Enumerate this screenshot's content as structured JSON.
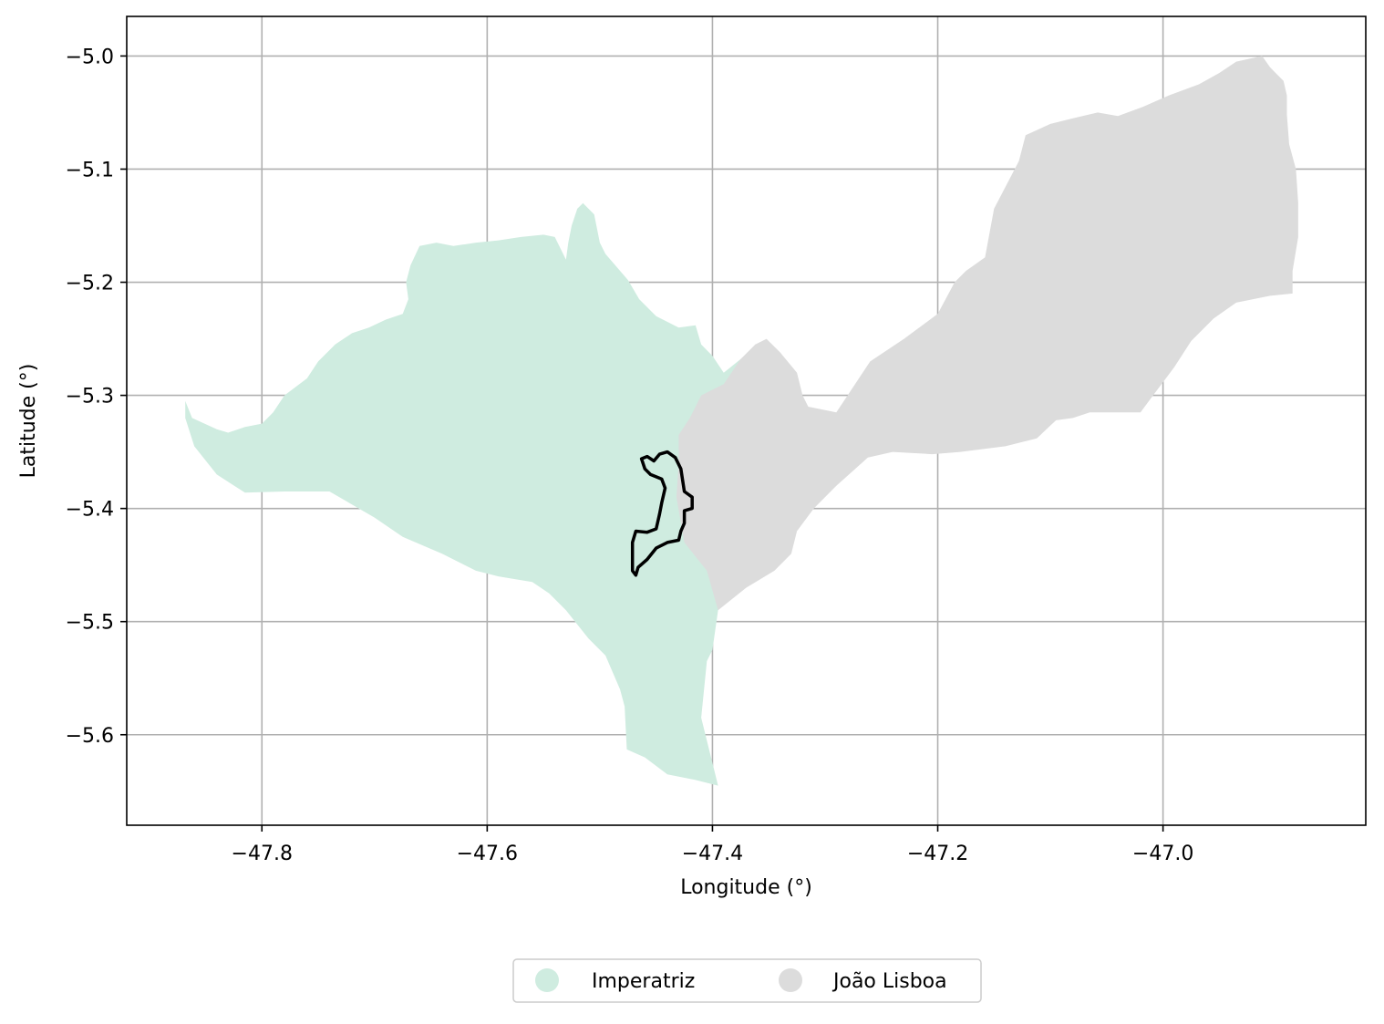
{
  "chart_data": {
    "type": "map",
    "xlabel": "Longitude (°)",
    "ylabel": "Latitude (°)",
    "xlim": [
      -47.92,
      -46.82
    ],
    "ylim": [
      -5.68,
      -4.965
    ],
    "xticks": [
      -47.8,
      -47.6,
      -47.4,
      -47.2,
      -47.0
    ],
    "xtick_labels": [
      "−47.8",
      "−47.6",
      "−47.4",
      "−47.2",
      "−47.0"
    ],
    "yticks": [
      -5.0,
      -5.1,
      -5.2,
      -5.3,
      -5.4,
      -5.5,
      -5.6
    ],
    "ytick_labels": [
      "−5.0",
      "−5.1",
      "−5.2",
      "−5.3",
      "−5.4",
      "−5.5",
      "−5.6"
    ],
    "grid": true,
    "legend_position": "bottom-center, below plot",
    "series": [
      {
        "name": "Imperatriz",
        "color": "#cfece0",
        "polygon": [
          [
            -47.868,
            -5.305
          ],
          [
            -47.862,
            -5.32
          ],
          [
            -47.84,
            -5.33
          ],
          [
            -47.83,
            -5.333
          ],
          [
            -47.815,
            -5.328
          ],
          [
            -47.8,
            -5.325
          ],
          [
            -47.79,
            -5.315
          ],
          [
            -47.78,
            -5.3
          ],
          [
            -47.76,
            -5.285
          ],
          [
            -47.75,
            -5.27
          ],
          [
            -47.735,
            -5.255
          ],
          [
            -47.72,
            -5.245
          ],
          [
            -47.705,
            -5.24
          ],
          [
            -47.69,
            -5.233
          ],
          [
            -47.675,
            -5.228
          ],
          [
            -47.67,
            -5.215
          ],
          [
            -47.672,
            -5.2
          ],
          [
            -47.668,
            -5.185
          ],
          [
            -47.66,
            -5.168
          ],
          [
            -47.645,
            -5.165
          ],
          [
            -47.63,
            -5.168
          ],
          [
            -47.61,
            -5.165
          ],
          [
            -47.59,
            -5.163
          ],
          [
            -47.57,
            -5.16
          ],
          [
            -47.55,
            -5.158
          ],
          [
            -47.54,
            -5.16
          ],
          [
            -47.53,
            -5.18
          ],
          [
            -47.528,
            -5.165
          ],
          [
            -47.525,
            -5.15
          ],
          [
            -47.52,
            -5.135
          ],
          [
            -47.515,
            -5.13
          ],
          [
            -47.505,
            -5.14
          ],
          [
            -47.5,
            -5.165
          ],
          [
            -47.495,
            -5.175
          ],
          [
            -47.475,
            -5.198
          ],
          [
            -47.465,
            -5.215
          ],
          [
            -47.45,
            -5.23
          ],
          [
            -47.43,
            -5.24
          ],
          [
            -47.415,
            -5.238
          ],
          [
            -47.41,
            -5.255
          ],
          [
            -47.4,
            -5.265
          ],
          [
            -47.39,
            -5.28
          ],
          [
            -47.375,
            -5.268
          ],
          [
            -47.365,
            -5.26
          ],
          [
            -47.372,
            -5.29
          ],
          [
            -47.38,
            -5.33
          ],
          [
            -47.385,
            -5.38
          ],
          [
            -47.385,
            -5.43
          ],
          [
            -47.395,
            -5.49
          ],
          [
            -47.4,
            -5.525
          ],
          [
            -47.405,
            -5.535
          ],
          [
            -47.41,
            -5.585
          ],
          [
            -47.395,
            -5.645
          ],
          [
            -47.415,
            -5.64
          ],
          [
            -47.44,
            -5.635
          ],
          [
            -47.46,
            -5.62
          ],
          [
            -47.476,
            -5.613
          ],
          [
            -47.478,
            -5.575
          ],
          [
            -47.482,
            -5.56
          ],
          [
            -47.495,
            -5.53
          ],
          [
            -47.51,
            -5.515
          ],
          [
            -47.53,
            -5.49
          ],
          [
            -47.545,
            -5.475
          ],
          [
            -47.56,
            -5.465
          ],
          [
            -47.59,
            -5.46
          ],
          [
            -47.61,
            -5.455
          ],
          [
            -47.64,
            -5.44
          ],
          [
            -47.675,
            -5.425
          ],
          [
            -47.7,
            -5.408
          ],
          [
            -47.74,
            -5.385
          ],
          [
            -47.78,
            -5.385
          ],
          [
            -47.815,
            -5.386
          ],
          [
            -47.84,
            -5.37
          ],
          [
            -47.86,
            -5.345
          ],
          [
            -47.868,
            -5.32
          ]
        ]
      },
      {
        "name": "João Lisboa",
        "color": "#dcdcdc",
        "polygon": [
          [
            -47.43,
            -5.335
          ],
          [
            -47.42,
            -5.32
          ],
          [
            -47.41,
            -5.3
          ],
          [
            -47.39,
            -5.29
          ],
          [
            -47.375,
            -5.268
          ],
          [
            -47.362,
            -5.255
          ],
          [
            -47.352,
            -5.25
          ],
          [
            -47.34,
            -5.262
          ],
          [
            -47.325,
            -5.28
          ],
          [
            -47.32,
            -5.3
          ],
          [
            -47.315,
            -5.31
          ],
          [
            -47.29,
            -5.315
          ],
          [
            -47.26,
            -5.27
          ],
          [
            -47.23,
            -5.25
          ],
          [
            -47.2,
            -5.228
          ],
          [
            -47.185,
            -5.2
          ],
          [
            -47.175,
            -5.19
          ],
          [
            -47.158,
            -5.178
          ],
          [
            -47.15,
            -5.135
          ],
          [
            -47.128,
            -5.093
          ],
          [
            -47.122,
            -5.07
          ],
          [
            -47.1,
            -5.06
          ],
          [
            -47.08,
            -5.055
          ],
          [
            -47.058,
            -5.05
          ],
          [
            -47.04,
            -5.053
          ],
          [
            -47.018,
            -5.045
          ],
          [
            -46.995,
            -5.035
          ],
          [
            -46.968,
            -5.025
          ],
          [
            -46.95,
            -5.015
          ],
          [
            -46.935,
            -5.005
          ],
          [
            -46.912,
            -5.0
          ],
          [
            -46.905,
            -5.01
          ],
          [
            -46.893,
            -5.022
          ],
          [
            -46.89,
            -5.035
          ],
          [
            -46.89,
            -5.052
          ],
          [
            -46.888,
            -5.078
          ],
          [
            -46.882,
            -5.1
          ],
          [
            -46.88,
            -5.13
          ],
          [
            -46.88,
            -5.16
          ],
          [
            -46.885,
            -5.19
          ],
          [
            -46.885,
            -5.21
          ],
          [
            -46.905,
            -5.212
          ],
          [
            -46.935,
            -5.218
          ],
          [
            -46.955,
            -5.232
          ],
          [
            -46.975,
            -5.252
          ],
          [
            -46.99,
            -5.275
          ],
          [
            -47.005,
            -5.295
          ],
          [
            -47.02,
            -5.315
          ],
          [
            -47.035,
            -5.315
          ],
          [
            -47.065,
            -5.315
          ],
          [
            -47.08,
            -5.32
          ],
          [
            -47.095,
            -5.322
          ],
          [
            -47.112,
            -5.338
          ],
          [
            -47.14,
            -5.345
          ],
          [
            -47.18,
            -5.35
          ],
          [
            -47.205,
            -5.352
          ],
          [
            -47.24,
            -5.35
          ],
          [
            -47.262,
            -5.355
          ],
          [
            -47.29,
            -5.38
          ],
          [
            -47.31,
            -5.4
          ],
          [
            -47.325,
            -5.42
          ],
          [
            -47.33,
            -5.44
          ],
          [
            -47.345,
            -5.455
          ],
          [
            -47.37,
            -5.47
          ],
          [
            -47.395,
            -5.49
          ],
          [
            -47.405,
            -5.455
          ],
          [
            -47.425,
            -5.43
          ],
          [
            -47.432,
            -5.39
          ],
          [
            -47.43,
            -5.36
          ]
        ]
      }
    ],
    "outline": {
      "color": "#000000",
      "polygon": [
        [
          -47.468,
          -5.42
        ],
        [
          -47.458,
          -5.421
        ],
        [
          -47.45,
          -5.418
        ],
        [
          -47.447,
          -5.405
        ],
        [
          -47.445,
          -5.395
        ],
        [
          -47.442,
          -5.382
        ],
        [
          -47.445,
          -5.374
        ],
        [
          -47.45,
          -5.372
        ],
        [
          -47.455,
          -5.37
        ],
        [
          -47.46,
          -5.365
        ],
        [
          -47.463,
          -5.356
        ],
        [
          -47.458,
          -5.354
        ],
        [
          -47.452,
          -5.358
        ],
        [
          -47.447,
          -5.352
        ],
        [
          -47.44,
          -5.35
        ],
        [
          -47.433,
          -5.355
        ],
        [
          -47.428,
          -5.365
        ],
        [
          -47.425,
          -5.385
        ],
        [
          -47.418,
          -5.39
        ],
        [
          -47.418,
          -5.4
        ],
        [
          -47.425,
          -5.402
        ],
        [
          -47.425,
          -5.413
        ],
        [
          -47.428,
          -5.42
        ],
        [
          -47.43,
          -5.428
        ],
        [
          -47.44,
          -5.43
        ],
        [
          -47.45,
          -5.435
        ],
        [
          -47.458,
          -5.445
        ],
        [
          -47.466,
          -5.452
        ],
        [
          -47.468,
          -5.459
        ],
        [
          -47.471,
          -5.455
        ],
        [
          -47.471,
          -5.43
        ]
      ]
    },
    "legend": {
      "items": [
        {
          "label": "Imperatriz",
          "color": "#cfece0"
        },
        {
          "label": "João Lisboa",
          "color": "#dcdcdc"
        }
      ]
    }
  }
}
